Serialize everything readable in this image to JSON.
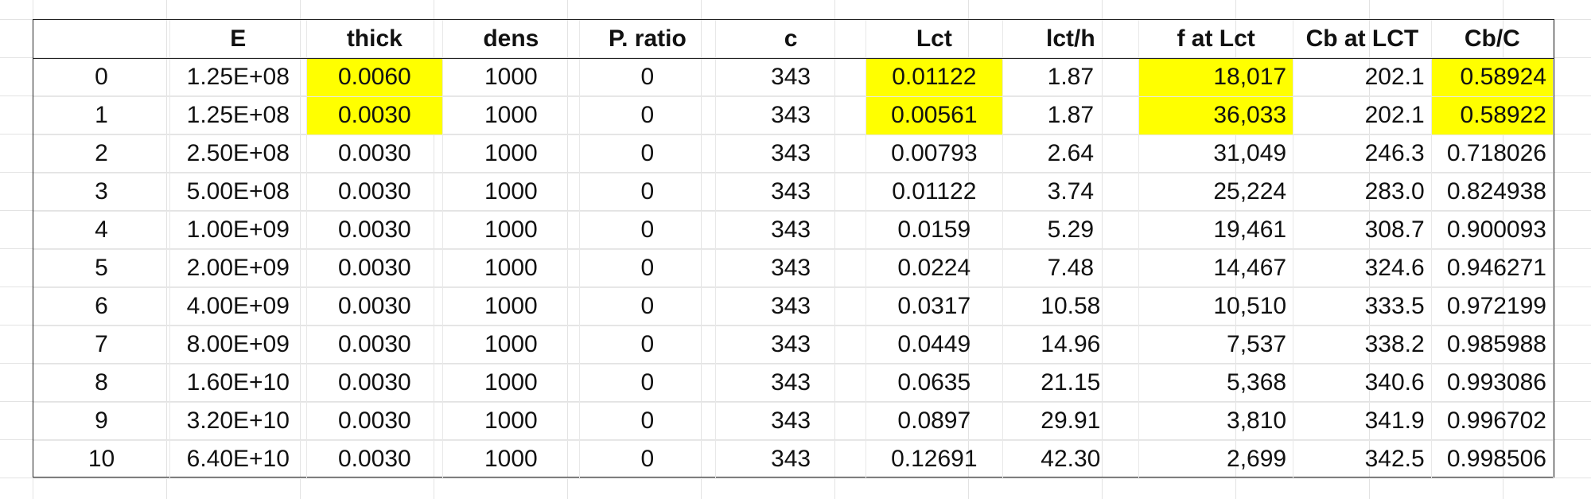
{
  "table": {
    "headers": [
      "",
      "E",
      "thick",
      "dens",
      "P. ratio",
      "c",
      "Lct",
      "lct/h",
      "f at Lct",
      "Cb at LCT",
      "Cb/C"
    ],
    "rows": [
      [
        "0",
        "1.25E+08",
        "0.0060",
        "1000",
        "0",
        "343",
        "0.01122",
        "1.87",
        "18,017",
        "202.1",
        "0.58924"
      ],
      [
        "1",
        "1.25E+08",
        "0.0030",
        "1000",
        "0",
        "343",
        "0.00561",
        "1.87",
        "36,033",
        "202.1",
        "0.58922"
      ],
      [
        "2",
        "2.50E+08",
        "0.0030",
        "1000",
        "0",
        "343",
        "0.00793",
        "2.64",
        "31,049",
        "246.3",
        "0.718026"
      ],
      [
        "3",
        "5.00E+08",
        "0.0030",
        "1000",
        "0",
        "343",
        "0.01122",
        "3.74",
        "25,224",
        "283.0",
        "0.824938"
      ],
      [
        "4",
        "1.00E+09",
        "0.0030",
        "1000",
        "0",
        "343",
        "0.0159",
        "5.29",
        "19,461",
        "308.7",
        "0.900093"
      ],
      [
        "5",
        "2.00E+09",
        "0.0030",
        "1000",
        "0",
        "343",
        "0.0224",
        "7.48",
        "14,467",
        "324.6",
        "0.946271"
      ],
      [
        "6",
        "4.00E+09",
        "0.0030",
        "1000",
        "0",
        "343",
        "0.0317",
        "10.58",
        "10,510",
        "333.5",
        "0.972199"
      ],
      [
        "7",
        "8.00E+09",
        "0.0030",
        "1000",
        "0",
        "343",
        "0.0449",
        "14.96",
        "7,537",
        "338.2",
        "0.985988"
      ],
      [
        "8",
        "1.60E+10",
        "0.0030",
        "1000",
        "0",
        "343",
        "0.0635",
        "21.15",
        "5,368",
        "340.6",
        "0.993086"
      ],
      [
        "9",
        "3.20E+10",
        "0.0030",
        "1000",
        "0",
        "343",
        "0.0897",
        "29.91",
        "3,810",
        "341.9",
        "0.996702"
      ],
      [
        "10",
        "6.40E+10",
        "0.0030",
        "1000",
        "0",
        "343",
        "0.12691",
        "42.30",
        "2,699",
        "342.5",
        "0.998506"
      ]
    ],
    "highlight_color": "#ffff00"
  }
}
